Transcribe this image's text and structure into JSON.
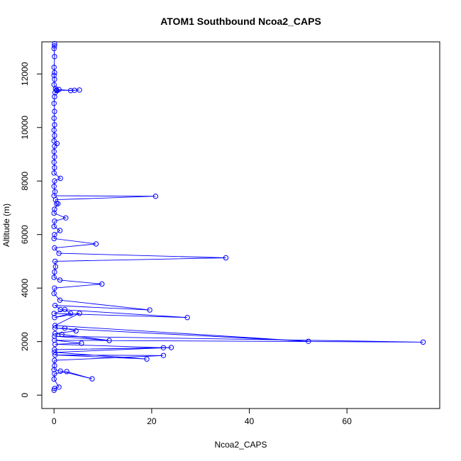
{
  "chart_data": {
    "type": "line",
    "title": "ATOM1 Southbound Ncoa2_CAPS",
    "xlabel": "Ncoa2_CAPS",
    "ylabel": "Altitude (m)",
    "xlim": [
      -2.5,
      79
    ],
    "ylim": [
      -500,
      13200
    ],
    "x_ticks": [
      0,
      20,
      40,
      60
    ],
    "y_ticks": [
      0,
      2000,
      4000,
      6000,
      8000,
      10000,
      12000
    ],
    "grid": false,
    "legend": "none",
    "series": [
      {
        "color": "#0000ff",
        "marker": "open-circle",
        "points": [
          [
            0.1,
            13130
          ],
          [
            0.1,
            13050
          ],
          [
            0.0,
            12950
          ],
          [
            0.1,
            12650
          ],
          [
            0.0,
            12250
          ],
          [
            0.1,
            12050
          ],
          [
            0.0,
            11950
          ],
          [
            0.1,
            11800
          ],
          [
            0.0,
            11600
          ],
          [
            0.3,
            11450
          ],
          [
            0.5,
            11400
          ],
          [
            1.0,
            11420
          ],
          [
            3.4,
            11380
          ],
          [
            4.2,
            11390
          ],
          [
            5.2,
            11400
          ],
          [
            0.6,
            11380
          ],
          [
            0.2,
            11300
          ],
          [
            0.1,
            11150
          ],
          [
            0.0,
            10900
          ],
          [
            0.1,
            10600
          ],
          [
            0.0,
            10350
          ],
          [
            0.1,
            10100
          ],
          [
            0.0,
            9900
          ],
          [
            0.1,
            9700
          ],
          [
            0.0,
            9500
          ],
          [
            0.6,
            9400
          ],
          [
            0.1,
            9300
          ],
          [
            0.0,
            9100
          ],
          [
            0.1,
            8900
          ],
          [
            0.0,
            8700
          ],
          [
            0.1,
            8500
          ],
          [
            0.0,
            8300
          ],
          [
            1.3,
            8100
          ],
          [
            0.1,
            8000
          ],
          [
            0.0,
            7800
          ],
          [
            0.2,
            7600
          ],
          [
            0.0,
            7450
          ],
          [
            20.8,
            7430
          ],
          [
            0.3,
            7300
          ],
          [
            0.5,
            7150
          ],
          [
            0.8,
            7150
          ],
          [
            0.1,
            6950
          ],
          [
            0.0,
            6800
          ],
          [
            2.4,
            6620
          ],
          [
            0.1,
            6500
          ],
          [
            0.0,
            6300
          ],
          [
            1.2,
            6150
          ],
          [
            0.1,
            6000
          ],
          [
            0.0,
            5850
          ],
          [
            8.6,
            5650
          ],
          [
            0.1,
            5500
          ],
          [
            1.0,
            5300
          ],
          [
            35.2,
            5130
          ],
          [
            0.2,
            5000
          ],
          [
            0.3,
            4800
          ],
          [
            0.1,
            4600
          ],
          [
            0.0,
            4400
          ],
          [
            1.2,
            4300
          ],
          [
            9.8,
            4150
          ],
          [
            0.1,
            4000
          ],
          [
            0.0,
            3800
          ],
          [
            1.2,
            3550
          ],
          [
            19.6,
            3180
          ],
          [
            0.2,
            3350
          ],
          [
            1.3,
            3200
          ],
          [
            27.3,
            2900
          ],
          [
            0.0,
            3050
          ],
          [
            2.2,
            3200
          ],
          [
            3.4,
            3050
          ],
          [
            0.1,
            2900
          ],
          [
            5.2,
            3060
          ],
          [
            0.2,
            2600
          ],
          [
            52.1,
            2010
          ],
          [
            0.2,
            2500
          ],
          [
            2.2,
            2500
          ],
          [
            4.5,
            2400
          ],
          [
            0.2,
            2300
          ],
          [
            1.6,
            2270
          ],
          [
            11.3,
            2040
          ],
          [
            0.1,
            2200
          ],
          [
            75.6,
            1980
          ],
          [
            0.1,
            2050
          ],
          [
            5.6,
            1940
          ],
          [
            0.2,
            1900
          ],
          [
            22.4,
            1770
          ],
          [
            0.1,
            1700
          ],
          [
            24.0,
            1780
          ],
          [
            0.1,
            1600
          ],
          [
            19.0,
            1350
          ],
          [
            0.2,
            1500
          ],
          [
            22.4,
            1480
          ],
          [
            0.1,
            1300
          ],
          [
            0.1,
            1100
          ],
          [
            0.0,
            950
          ],
          [
            1.3,
            900
          ],
          [
            7.8,
            610
          ],
          [
            2.6,
            880
          ],
          [
            0.1,
            800
          ],
          [
            0.0,
            600
          ],
          [
            1.0,
            300
          ],
          [
            0.1,
            250
          ],
          [
            0.0,
            180
          ]
        ]
      }
    ]
  }
}
